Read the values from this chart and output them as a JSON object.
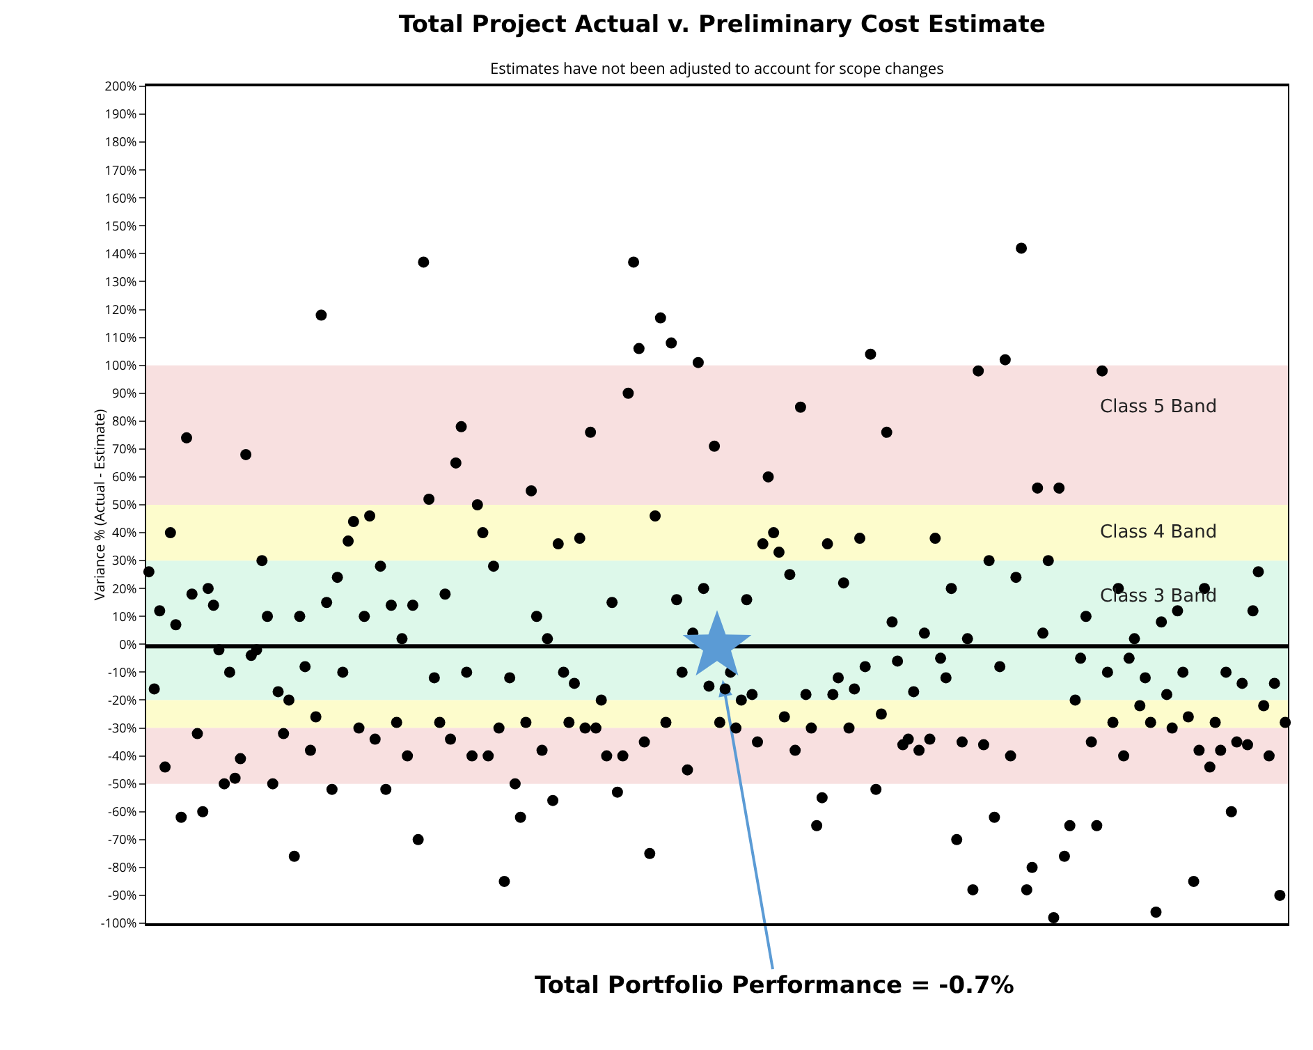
{
  "chart_data": {
    "type": "scatter",
    "title": "Total Project Actual v. Preliminary Cost Estimate",
    "subtitle": "Estimates have not been adjusted to account for scope changes",
    "ylabel": "Variance % (Actual - Estimate)",
    "categories": [
      null,
      null,
      null,
      null,
      null,
      null,
      null,
      null,
      null,
      null,
      null,
      null,
      null,
      null,
      null,
      null,
      null,
      null,
      null,
      null,
      null,
      null,
      null,
      null,
      null,
      null,
      null,
      null,
      null,
      null,
      null,
      null,
      null,
      null,
      null,
      null,
      null,
      null,
      null,
      null,
      null,
      null,
      null,
      null,
      null,
      null,
      null,
      null,
      null,
      null,
      null,
      null,
      null,
      null,
      null,
      null,
      null,
      null,
      null,
      null,
      null,
      null,
      null,
      null,
      null,
      null,
      null,
      null,
      null,
      null,
      null,
      null,
      null,
      null,
      null,
      null,
      null,
      null,
      null,
      null,
      null,
      null,
      null,
      null,
      null,
      null,
      null,
      null,
      null,
      null,
      null,
      null,
      null,
      null,
      null,
      null,
      null,
      null,
      null,
      null,
      null,
      null,
      null,
      null,
      null,
      null,
      null,
      null,
      null,
      null,
      null,
      null,
      null,
      null,
      null,
      null,
      null,
      null,
      null,
      null,
      null,
      null,
      null,
      null,
      null,
      null,
      null,
      null,
      null,
      null,
      null,
      null,
      null,
      null,
      null,
      null,
      null,
      null,
      null,
      null,
      null,
      null,
      null,
      null,
      null,
      null,
      null,
      null,
      null,
      null,
      null,
      null,
      null,
      null,
      null,
      null,
      null,
      null,
      null,
      null,
      null,
      null,
      null,
      null,
      null,
      null,
      null,
      null,
      null,
      null,
      null,
      null,
      null,
      null,
      null,
      null,
      null,
      null,
      null,
      null,
      null,
      null,
      null,
      null,
      null,
      null,
      null,
      null,
      null,
      null,
      null,
      null,
      null,
      null,
      null,
      null,
      null,
      null,
      null,
      null,
      null,
      null,
      null,
      null,
      null,
      null,
      null,
      null,
      null,
      null,
      null,
      null
    ],
    "series": [
      {
        "color": "#000000",
        "values": [
          26,
          -16,
          12,
          -44,
          40,
          7,
          -62,
          74,
          18,
          -32,
          -60,
          20,
          14,
          -2,
          -50,
          -10,
          -48,
          -41,
          68,
          -4,
          -2,
          30,
          10,
          -50,
          -17,
          -32,
          -20,
          -76,
          10,
          -8,
          -38,
          -26,
          118,
          15,
          -52,
          24,
          -10,
          37,
          44,
          -30,
          10,
          46,
          -34,
          28,
          -52,
          14,
          -28,
          2,
          -40,
          14,
          -70,
          137,
          52,
          -12,
          -28,
          18,
          -34,
          65,
          78,
          -10,
          -40,
          50,
          40,
          -40,
          28,
          -30,
          -85,
          -12,
          -50,
          -62,
          -28,
          55,
          10,
          -38,
          2,
          -56,
          36,
          -10,
          -28,
          -14,
          38,
          -30,
          76,
          -30,
          -20,
          -40,
          15,
          -53,
          -40,
          90,
          137,
          106,
          -35,
          -75,
          46,
          117,
          -28,
          108,
          16,
          -10,
          -45,
          4,
          101,
          20,
          -15,
          71,
          -28,
          -16,
          -10,
          -30,
          -20,
          16,
          -18,
          -35,
          36,
          60,
          40,
          33,
          -26,
          25,
          -38,
          85,
          -18,
          -30,
          -65,
          -55,
          36,
          -18,
          -12,
          22,
          -30,
          -16,
          38,
          -8,
          104,
          -52,
          -25,
          76,
          8,
          -6,
          -36,
          -34,
          -17,
          -38,
          4,
          -34,
          38,
          -5,
          -12,
          20,
          -70,
          -35,
          2,
          -88,
          98,
          -36,
          30,
          -62,
          -8,
          102,
          -40,
          24,
          142,
          -88,
          -80,
          56,
          4,
          30,
          -98,
          56,
          -76,
          -65,
          -20,
          -5,
          10,
          -35,
          -65,
          98,
          -10,
          -28,
          20,
          -40,
          -5,
          2,
          -22,
          -12,
          -28,
          -96,
          8,
          -18,
          -30,
          12,
          -10,
          -26,
          -85,
          -38,
          20,
          -44,
          -28,
          -38,
          -10,
          -60,
          -35,
          -14,
          -36,
          12,
          26,
          -22,
          -40,
          -14,
          -90,
          -28
        ]
      }
    ],
    "marker": "circle",
    "grid": false,
    "ylim": [
      -100,
      200
    ],
    "yticks": [
      {
        "value": -100,
        "label": "-100%"
      },
      {
        "value": -90,
        "label": "-90%"
      },
      {
        "value": -80,
        "label": "-80%"
      },
      {
        "value": -70,
        "label": "-70%"
      },
      {
        "value": -60,
        "label": "-60%"
      },
      {
        "value": -50,
        "label": "-50%"
      },
      {
        "value": -40,
        "label": "-40%"
      },
      {
        "value": -30,
        "label": "-30%"
      },
      {
        "value": -20,
        "label": "-20%"
      },
      {
        "value": -10,
        "label": "-10%"
      },
      {
        "value": 0,
        "label": "0%"
      },
      {
        "value": 10,
        "label": "10%"
      },
      {
        "value": 20,
        "label": "20%"
      },
      {
        "value": 30,
        "label": "30%"
      },
      {
        "value": 40,
        "label": "40%"
      },
      {
        "value": 50,
        "label": "50%"
      },
      {
        "value": 60,
        "label": "60%"
      },
      {
        "value": 70,
        "label": "70%"
      },
      {
        "value": 80,
        "label": "80%"
      },
      {
        "value": 90,
        "label": "90%"
      },
      {
        "value": 100,
        "label": "100%"
      },
      {
        "value": 110,
        "label": "110%"
      },
      {
        "value": 120,
        "label": "120%"
      },
      {
        "value": 130,
        "label": "130%"
      },
      {
        "value": 140,
        "label": "140%"
      },
      {
        "value": 150,
        "label": "150%"
      },
      {
        "value": 160,
        "label": "160%"
      },
      {
        "value": 170,
        "label": "170%"
      },
      {
        "value": 180,
        "label": "180%"
      },
      {
        "value": 190,
        "label": "190%"
      },
      {
        "value": 200,
        "label": "200%"
      }
    ],
    "bands": [
      {
        "axis": "y",
        "from": 50,
        "to": 100,
        "label": "Class 5 Band",
        "color": "#f8e0e0"
      },
      {
        "axis": "y",
        "from": 30,
        "to": 50,
        "label": "Class 4 Band",
        "color": "#fdfccc"
      },
      {
        "axis": "y",
        "from": -20,
        "to": 30,
        "label": "Class 3 Band",
        "color": "#ddf8ea"
      },
      {
        "axis": "y",
        "from": -30,
        "to": -20,
        "color": "#fdfccc"
      },
      {
        "axis": "y",
        "from": -50,
        "to": -30,
        "color": "#f8e0e0"
      }
    ],
    "ref_lines": [
      {
        "axis": "y",
        "value": -0.7,
        "color": "#000000"
      }
    ],
    "annotations": [
      "Total Portfolio Performance = -0.7%"
    ]
  }
}
